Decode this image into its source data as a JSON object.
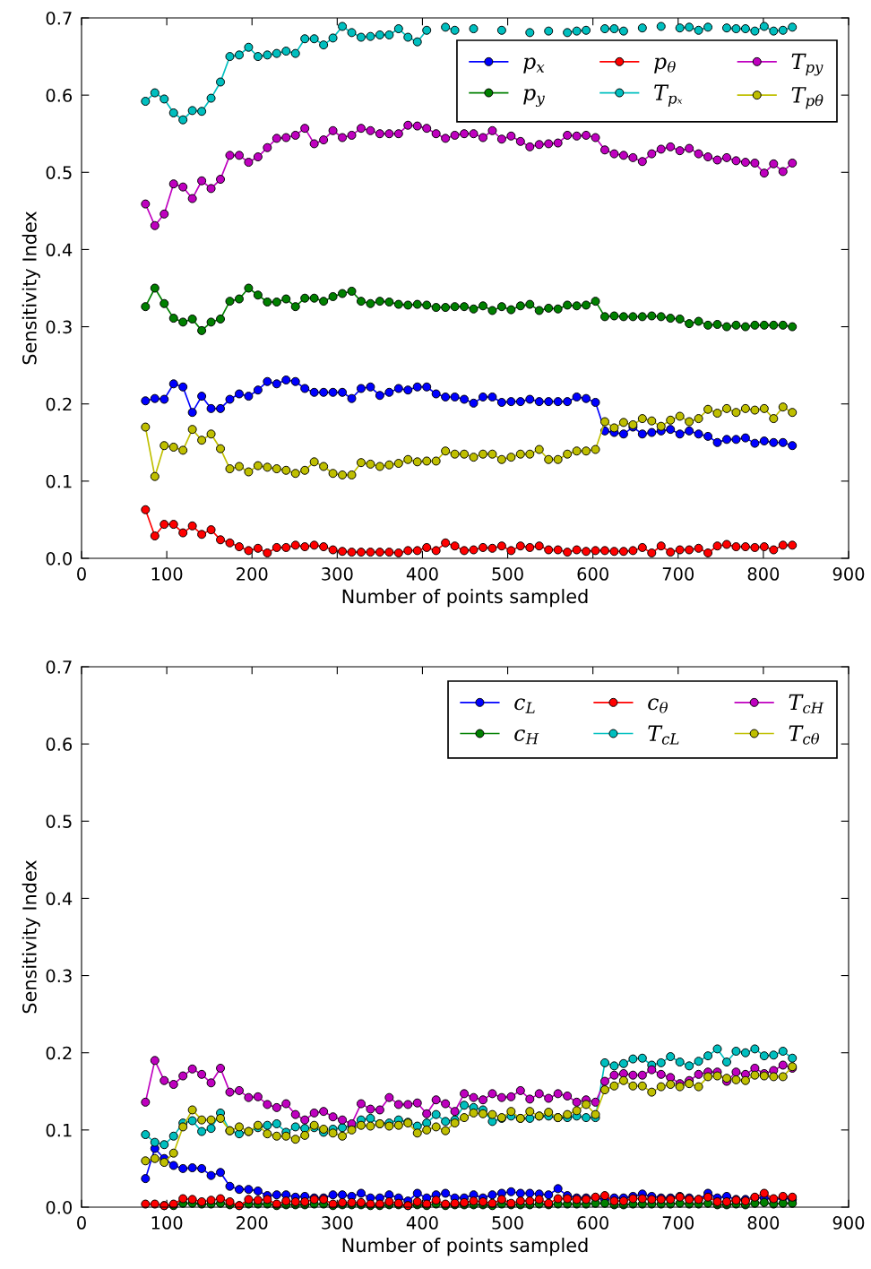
{
  "chart_data": [
    {
      "type": "line",
      "xlabel": "Number of points sampled",
      "ylabel": "Sensitivity Index",
      "xlim": [
        0,
        900
      ],
      "ylim": [
        0,
        0.7
      ],
      "xticks": [
        0,
        100,
        200,
        300,
        400,
        500,
        600,
        700,
        800,
        900
      ],
      "yticks": [
        {
          "value": 0,
          "label": "0.0"
        },
        {
          "value": 0.1,
          "label": "0.1"
        },
        {
          "value": 0.2,
          "label": "0.2"
        },
        {
          "value": 0.3,
          "label": "0.3"
        },
        {
          "value": 0.4,
          "label": "0.4"
        },
        {
          "value": 0.5,
          "label": "0.5"
        },
        {
          "value": 0.6,
          "label": "0.6"
        },
        {
          "value": 0.7,
          "label": "0.7"
        }
      ],
      "grid": false,
      "legend": "top right",
      "marker": "circle",
      "line_style": "solid",
      "x": [
        75,
        86,
        97,
        108,
        119,
        130,
        141,
        152,
        163,
        174,
        185,
        196,
        207,
        218,
        229,
        240,
        251,
        262,
        273,
        284,
        295,
        306,
        317,
        328,
        339,
        350,
        361,
        372,
        383,
        394,
        405,
        416,
        427,
        438,
        449,
        460,
        471,
        482,
        493,
        504,
        515,
        526,
        537,
        548,
        559,
        570,
        581,
        592,
        603,
        614,
        625,
        636,
        647,
        658,
        669,
        680,
        691,
        702,
        713,
        724,
        735,
        746,
        757,
        768,
        779,
        790,
        801,
        812,
        823,
        834
      ],
      "series": [
        {
          "name": "p$_{x}$",
          "color": "#0000ff",
          "values": [
            0.204,
            0.207,
            0.206,
            0.226,
            0.222,
            0.189,
            0.21,
            0.194,
            0.194,
            0.206,
            0.213,
            0.21,
            0.218,
            0.229,
            0.226,
            0.231,
            0.229,
            0.22,
            0.215,
            0.215,
            0.215,
            0.215,
            0.207,
            0.22,
            0.222,
            0.211,
            0.215,
            0.22,
            0.218,
            0.222,
            0.222,
            0.213,
            0.209,
            0.209,
            0.206,
            0.201,
            0.209,
            0.209,
            0.202,
            0.203,
            0.203,
            0.206,
            0.203,
            0.203,
            0.203,
            0.203,
            0.209,
            0.207,
            0.202,
            0.165,
            0.163,
            0.161,
            0.17,
            0.161,
            0.163,
            0.165,
            0.167,
            0.161,
            0.165,
            0.161,
            0.158,
            0.15,
            0.154,
            0.154,
            0.156,
            0.149,
            0.152,
            0.15,
            0.15,
            0.146
          ]
        },
        {
          "name": "p$_{y}$",
          "color": "#008000",
          "values": [
            0.326,
            0.35,
            0.33,
            0.311,
            0.306,
            0.31,
            0.295,
            0.306,
            0.31,
            0.333,
            0.336,
            0.35,
            0.341,
            0.332,
            0.332,
            0.336,
            0.326,
            0.337,
            0.337,
            0.333,
            0.339,
            0.343,
            0.346,
            0.333,
            0.33,
            0.333,
            0.332,
            0.329,
            0.328,
            0.329,
            0.328,
            0.325,
            0.325,
            0.326,
            0.326,
            0.323,
            0.327,
            0.321,
            0.326,
            0.322,
            0.327,
            0.329,
            0.321,
            0.324,
            0.323,
            0.328,
            0.327,
            0.328,
            0.333,
            0.313,
            0.314,
            0.313,
            0.313,
            0.313,
            0.314,
            0.313,
            0.311,
            0.31,
            0.304,
            0.307,
            0.302,
            0.303,
            0.3,
            0.302,
            0.3,
            0.302,
            0.302,
            0.302,
            0.302,
            0.3
          ]
        },
        {
          "name": "p$_{θ}$",
          "color": "#ff0000",
          "values": [
            0.063,
            0.029,
            0.044,
            0.044,
            0.033,
            0.042,
            0.031,
            0.037,
            0.024,
            0.02,
            0.015,
            0.01,
            0.013,
            0.007,
            0.014,
            0.014,
            0.017,
            0.015,
            0.017,
            0.015,
            0.011,
            0.009,
            0.008,
            0.008,
            0.008,
            0.008,
            0.008,
            0.007,
            0.01,
            0.01,
            0.014,
            0.01,
            0.02,
            0.016,
            0.01,
            0.011,
            0.014,
            0.013,
            0.016,
            0.01,
            0.016,
            0.014,
            0.016,
            0.011,
            0.011,
            0.008,
            0.011,
            0.009,
            0.01,
            0.01,
            0.009,
            0.009,
            0.01,
            0.014,
            0.007,
            0.016,
            0.008,
            0.011,
            0.011,
            0.013,
            0.007,
            0.016,
            0.018,
            0.015,
            0.015,
            0.014,
            0.015,
            0.011,
            0.017,
            0.017
          ]
        },
        {
          "name": "T$_{pₓ}$",
          "color": "#00bfbf",
          "values": [
            0.592,
            0.603,
            0.595,
            0.577,
            0.568,
            0.58,
            0.579,
            0.596,
            0.617,
            0.65,
            0.652,
            0.662,
            0.65,
            0.652,
            0.654,
            0.657,
            0.654,
            0.673,
            0.673,
            0.665,
            0.674,
            0.689,
            0.681,
            0.675,
            0.676,
            0.678,
            0.678,
            0.686,
            0.675,
            0.669,
            0.684,
            null,
            0.688,
            0.684,
            null,
            0.686,
            null,
            null,
            0.684,
            null,
            null,
            0.681,
            null,
            0.683,
            null,
            0.681,
            0.683,
            0.684,
            null,
            0.686,
            0.686,
            0.683,
            null,
            0.687,
            null,
            0.689,
            null,
            0.687,
            0.688,
            0.684,
            0.688,
            null,
            0.687,
            0.686,
            0.686,
            0.683,
            0.689,
            0.683,
            0.684,
            0.688
          ]
        },
        {
          "name": "T$_{py}$",
          "color": "#bf00bf",
          "values": [
            0.459,
            0.431,
            0.446,
            0.485,
            0.481,
            0.466,
            0.489,
            0.479,
            0.491,
            0.522,
            0.522,
            0.513,
            0.52,
            0.532,
            0.544,
            0.545,
            0.548,
            0.557,
            0.537,
            0.542,
            0.554,
            0.545,
            0.548,
            0.557,
            0.554,
            0.55,
            0.55,
            0.55,
            0.561,
            0.56,
            0.557,
            0.55,
            0.544,
            0.548,
            0.55,
            0.55,
            0.545,
            0.554,
            0.543,
            0.547,
            0.54,
            0.533,
            0.536,
            0.537,
            0.538,
            0.548,
            0.547,
            0.548,
            0.545,
            0.529,
            0.524,
            0.522,
            0.519,
            0.514,
            0.524,
            0.53,
            0.533,
            0.528,
            0.531,
            0.524,
            0.52,
            0.516,
            0.519,
            0.515,
            0.513,
            0.512,
            0.499,
            0.511,
            0.501,
            0.512
          ]
        },
        {
          "name": "T$_{pθ}$",
          "color": "#bfbf00",
          "values": [
            0.17,
            0.106,
            0.146,
            0.144,
            0.14,
            0.167,
            0.153,
            0.161,
            0.142,
            0.116,
            0.119,
            0.112,
            0.12,
            0.118,
            0.116,
            0.114,
            0.11,
            0.114,
            0.125,
            0.119,
            0.11,
            0.108,
            0.108,
            0.124,
            0.122,
            0.119,
            0.121,
            0.123,
            0.128,
            0.125,
            0.126,
            0.126,
            0.139,
            0.135,
            0.135,
            0.131,
            0.135,
            0.135,
            0.128,
            0.131,
            0.135,
            0.135,
            0.141,
            0.128,
            0.128,
            0.135,
            0.139,
            0.139,
            0.141,
            0.177,
            0.169,
            0.176,
            0.173,
            0.181,
            0.178,
            0.171,
            0.179,
            0.184,
            0.177,
            0.181,
            0.193,
            0.188,
            0.194,
            0.189,
            0.194,
            0.192,
            0.194,
            0.181,
            0.196,
            0.189
          ]
        }
      ]
    },
    {
      "type": "line",
      "xlabel": "Number of points sampled",
      "ylabel": "Sensitivity Index",
      "xlim": [
        0,
        900
      ],
      "ylim": [
        0,
        0.7
      ],
      "xticks": [
        0,
        100,
        200,
        300,
        400,
        500,
        600,
        700,
        800,
        900
      ],
      "yticks": [
        {
          "value": 0,
          "label": "0.0"
        },
        {
          "value": 0.1,
          "label": "0.1"
        },
        {
          "value": 0.2,
          "label": "0.2"
        },
        {
          "value": 0.3,
          "label": "0.3"
        },
        {
          "value": 0.4,
          "label": "0.4"
        },
        {
          "value": 0.5,
          "label": "0.5"
        },
        {
          "value": 0.6,
          "label": "0.6"
        },
        {
          "value": 0.7,
          "label": "0.7"
        }
      ],
      "grid": false,
      "legend": "top right",
      "marker": "circle",
      "line_style": "solid",
      "x": [
        75,
        86,
        97,
        108,
        119,
        130,
        141,
        152,
        163,
        174,
        185,
        196,
        207,
        218,
        229,
        240,
        251,
        262,
        273,
        284,
        295,
        306,
        317,
        328,
        339,
        350,
        361,
        372,
        383,
        394,
        405,
        416,
        427,
        438,
        449,
        460,
        471,
        482,
        493,
        504,
        515,
        526,
        537,
        548,
        559,
        570,
        581,
        592,
        603,
        614,
        625,
        636,
        647,
        658,
        669,
        680,
        691,
        702,
        713,
        724,
        735,
        746,
        757,
        768,
        779,
        790,
        801,
        812,
        823,
        834
      ],
      "series": [
        {
          "name": "c$_{L}$",
          "color": "#0000ff",
          "values": [
            0.037,
            0.076,
            0.063,
            0.054,
            0.05,
            0.051,
            0.05,
            0.041,
            0.045,
            0.027,
            0.023,
            0.023,
            0.021,
            0.015,
            0.016,
            0.016,
            0.013,
            0.014,
            0.012,
            0.012,
            0.016,
            0.016,
            0.014,
            0.018,
            0.012,
            0.012,
            0.016,
            0.012,
            0.008,
            0.018,
            0.012,
            0.016,
            0.018,
            0.012,
            0.012,
            0.016,
            0.012,
            0.016,
            0.018,
            0.02,
            0.018,
            0.018,
            0.017,
            0.016,
            0.024,
            0.015,
            0.012,
            0.012,
            0.012,
            0.01,
            0.012,
            0.012,
            0.014,
            0.017,
            0.014,
            0.012,
            0.012,
            0.014,
            0.012,
            0.01,
            0.018,
            0.012,
            0.014,
            0.01,
            0.01,
            0.012,
            0.012,
            0.01,
            0.012,
            0.01
          ]
        },
        {
          "name": "c$_{H}$",
          "color": "#008000",
          "values": [
            null,
            null,
            0.002,
            0.002,
            0.005,
            0.005,
            0.004,
            0.004,
            0.005,
            0.003,
            0.002,
            0.004,
            0.004,
            0.004,
            0.002,
            0.003,
            0.003,
            0.003,
            0.004,
            0.004,
            0.002,
            0.003,
            0.003,
            0.003,
            0.002,
            0.002,
            0.003,
            0.003,
            0.002,
            0.003,
            0.002,
            0.004,
            0.002,
            0.003,
            0.003,
            0.003,
            0.003,
            0.002,
            0.004,
            0.003,
            0.003,
            0.003,
            0.004,
            0.003,
            0.004,
            0.004,
            0.004,
            0.004,
            0.005,
            0.005,
            0.003,
            0.003,
            0.004,
            0.004,
            0.004,
            0.004,
            0.004,
            0.005,
            0.004,
            0.004,
            0.005,
            0.003,
            0.003,
            0.004,
            0.003,
            0.005,
            0.006,
            0.004,
            0.005,
            0.005
          ]
        },
        {
          "name": "c$_{θ}$",
          "color": "#ff0000",
          "values": [
            0.004,
            0.004,
            0.002,
            0.004,
            0.011,
            0.01,
            0.007,
            0.009,
            0.011,
            0.007,
            0.002,
            0.01,
            0.009,
            0.01,
            0.004,
            0.008,
            0.007,
            0.007,
            0.01,
            0.01,
            0.004,
            0.006,
            0.006,
            0.006,
            0.004,
            0.004,
            0.007,
            0.005,
            0.002,
            0.007,
            0.004,
            0.009,
            0.004,
            0.005,
            0.006,
            0.008,
            0.007,
            0.005,
            0.01,
            0.005,
            0.008,
            0.008,
            0.01,
            0.005,
            0.011,
            0.011,
            0.01,
            0.01,
            0.013,
            0.015,
            0.008,
            0.008,
            0.011,
            0.011,
            0.01,
            0.01,
            0.01,
            0.013,
            0.01,
            0.01,
            0.013,
            0.007,
            0.007,
            0.009,
            0.008,
            0.013,
            0.018,
            0.011,
            0.014,
            0.013
          ]
        },
        {
          "name": "T$_{cL}$",
          "color": "#00bfbf",
          "values": [
            0.094,
            0.084,
            0.081,
            0.092,
            0.109,
            0.112,
            0.098,
            0.102,
            0.122,
            0.099,
            0.095,
            0.098,
            0.103,
            0.106,
            0.108,
            0.097,
            0.104,
            0.102,
            0.103,
            0.097,
            0.101,
            0.103,
            0.105,
            0.113,
            0.115,
            0.108,
            0.109,
            0.113,
            0.11,
            0.105,
            0.109,
            0.12,
            0.111,
            0.113,
            0.132,
            0.129,
            0.126,
            0.111,
            0.115,
            0.118,
            0.115,
            0.115,
            0.118,
            0.118,
            0.116,
            0.116,
            0.118,
            0.116,
            0.116,
            0.187,
            0.183,
            0.186,
            0.192,
            0.193,
            0.184,
            0.187,
            0.195,
            0.188,
            0.183,
            0.189,
            0.196,
            0.205,
            0.188,
            0.202,
            0.2,
            0.205,
            0.196,
            0.197,
            0.202,
            0.193
          ]
        },
        {
          "name": "T$_{cH}$",
          "color": "#bf00bf",
          "values": [
            0.136,
            0.19,
            0.164,
            0.159,
            0.17,
            0.179,
            0.172,
            0.161,
            0.18,
            0.149,
            0.151,
            0.142,
            0.143,
            0.133,
            0.129,
            0.134,
            0.12,
            0.113,
            0.122,
            0.124,
            0.117,
            0.113,
            0.108,
            0.134,
            0.127,
            0.126,
            0.142,
            0.133,
            0.133,
            0.135,
            0.121,
            0.139,
            0.134,
            0.124,
            0.147,
            0.142,
            0.139,
            0.147,
            0.142,
            0.143,
            0.151,
            0.14,
            0.147,
            0.141,
            0.147,
            0.144,
            0.136,
            0.139,
            0.136,
            0.163,
            0.171,
            0.173,
            0.171,
            0.171,
            0.178,
            0.172,
            0.168,
            0.16,
            0.164,
            0.172,
            0.175,
            0.175,
            0.163,
            0.175,
            0.172,
            0.18,
            0.173,
            0.177,
            0.184,
            0.18
          ]
        },
        {
          "name": "T$_{cθ}$",
          "color": "#bfbf00",
          "values": [
            0.06,
            0.063,
            0.058,
            0.07,
            0.104,
            0.126,
            0.113,
            0.113,
            0.115,
            0.099,
            0.104,
            0.098,
            0.106,
            0.095,
            0.092,
            0.092,
            0.088,
            0.093,
            0.106,
            0.101,
            0.096,
            0.092,
            0.1,
            0.106,
            0.105,
            0.108,
            0.105,
            0.106,
            0.109,
            0.096,
            0.1,
            0.104,
            0.099,
            0.109,
            0.116,
            0.122,
            0.121,
            0.12,
            0.116,
            0.124,
            0.115,
            0.124,
            0.118,
            0.123,
            0.116,
            0.12,
            0.125,
            0.133,
            0.12,
            0.152,
            0.157,
            0.164,
            0.157,
            0.157,
            0.149,
            0.156,
            0.159,
            0.156,
            0.16,
            0.156,
            0.169,
            0.17,
            0.167,
            0.165,
            0.164,
            0.171,
            0.17,
            0.169,
            0.169,
            0.182
          ]
        }
      ]
    }
  ]
}
